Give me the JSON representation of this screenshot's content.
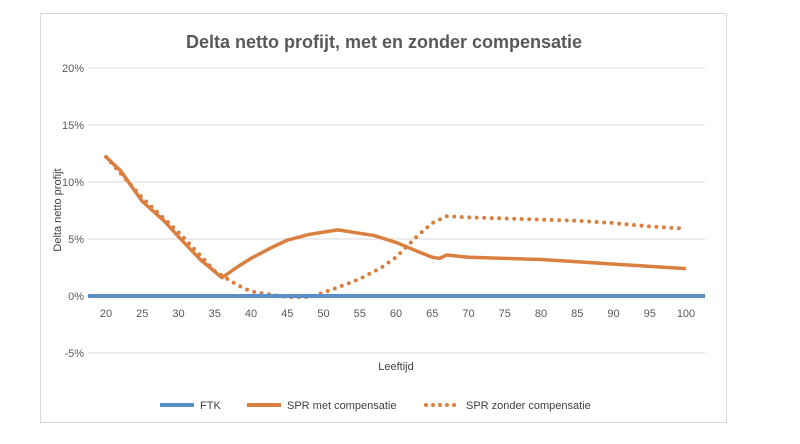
{
  "chart_data": {
    "type": "line",
    "title": "Delta netto profijt, met en zonder compensatie",
    "xlabel": "Leeftijd",
    "ylabel": "Delta netto profijt",
    "xlim": [
      20,
      100
    ],
    "ylim": [
      -5,
      20
    ],
    "x_ticks": [
      "20",
      "25",
      "30",
      "35",
      "40",
      "45",
      "50",
      "55",
      "60",
      "65",
      "70",
      "75",
      "80",
      "85",
      "90",
      "95",
      "100"
    ],
    "y_ticks": [
      "-5%",
      "0%",
      "5%",
      "10%",
      "15%",
      "20%"
    ],
    "grid": true,
    "legend": "bottom",
    "series": [
      {
        "name": "FTK",
        "color": "#5b8fc9",
        "style": "solid",
        "x": [
          20,
          100
        ],
        "y": [
          0,
          0
        ]
      },
      {
        "name": "SPR met compensatie",
        "color": "#d98040",
        "style": "solid",
        "x": [
          20,
          22,
          25,
          28,
          30,
          33,
          36,
          38,
          40,
          43,
          45,
          48,
          50,
          52,
          55,
          57,
          60,
          63,
          65,
          66,
          67,
          70,
          75,
          80,
          85,
          90,
          95,
          100
        ],
        "y": [
          12.2,
          11.0,
          8.3,
          6.6,
          5.2,
          3.2,
          1.6,
          2.5,
          3.3,
          4.3,
          4.9,
          5.4,
          5.6,
          5.8,
          5.5,
          5.3,
          4.7,
          3.9,
          3.4,
          3.3,
          3.6,
          3.4,
          3.3,
          3.2,
          3.0,
          2.8,
          2.6,
          2.4
        ]
      },
      {
        "name": "SPR zonder compensatie",
        "color": "#d98040",
        "style": "dotted",
        "x": [
          20,
          25,
          30,
          35,
          38,
          40,
          43,
          45,
          48,
          50,
          53,
          55,
          58,
          60,
          63,
          65,
          67,
          70,
          75,
          80,
          85,
          90,
          95,
          100
        ],
        "y": [
          12.2,
          8.6,
          5.6,
          2.2,
          1.0,
          0.4,
          0.1,
          -0.1,
          -0.1,
          0.3,
          1.0,
          1.5,
          2.5,
          3.4,
          5.3,
          6.4,
          7.0,
          6.9,
          6.8,
          6.7,
          6.6,
          6.4,
          6.1,
          5.9
        ]
      }
    ]
  }
}
